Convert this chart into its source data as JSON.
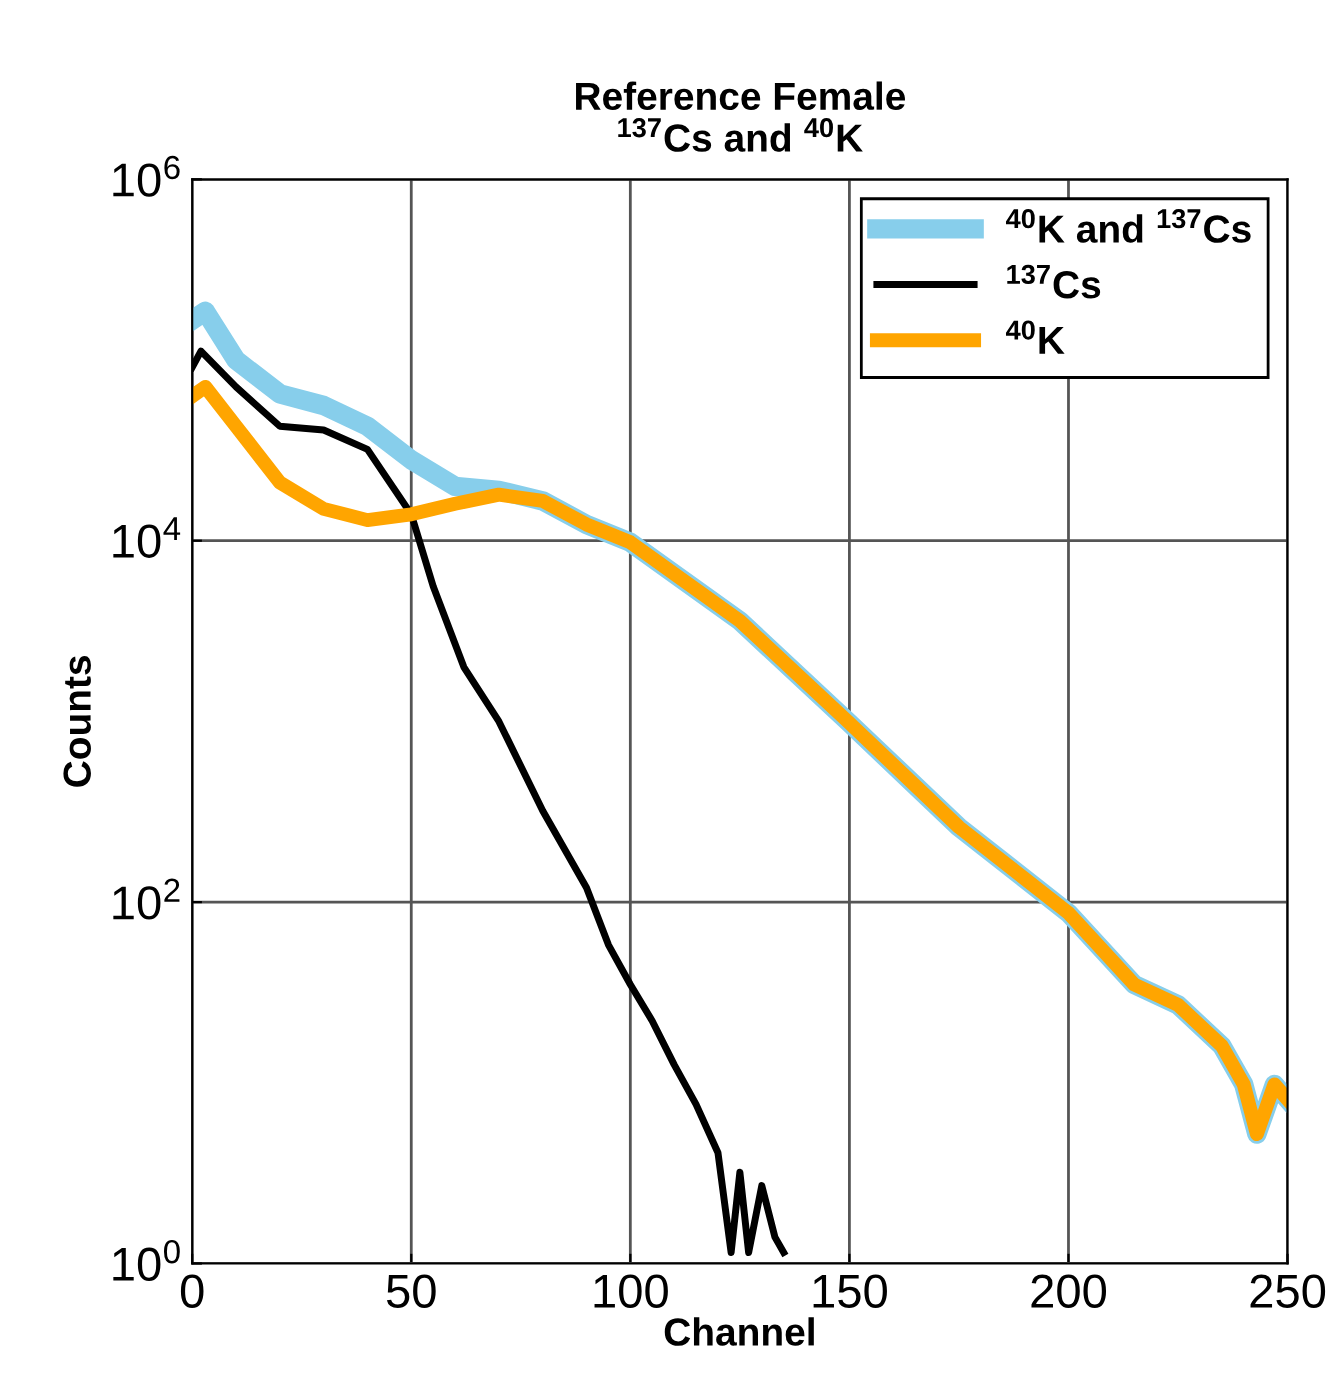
{
  "chart_data": {
    "type": "line",
    "title": "Reference Female\n$^{137}$Cs and $^{40}$K",
    "xlabel": "Channel",
    "ylabel": "Counts",
    "log": "y",
    "grid": true,
    "legend": "top right",
    "xlim": [
      0,
      250
    ],
    "xticks": [
      0,
      50,
      100,
      150,
      200,
      250
    ],
    "ylim": [
      1,
      1000000
    ],
    "yticks": [
      {
        "value": 1,
        "label": "10$^{0}$"
      },
      {
        "value": 100,
        "label": "10$^{2}$"
      },
      {
        "value": 10000,
        "label": "10$^{4}$"
      },
      {
        "value": 1000000,
        "label": "10$^{6}$"
      }
    ],
    "series": [
      {
        "name": "$^{40}$K and $^{137}$Cs",
        "color": "#87ceeb",
        "x": [
          0,
          3,
          10,
          20,
          30,
          40,
          50,
          60,
          70,
          80,
          90,
          100,
          125,
          150,
          175,
          200,
          215,
          225,
          235,
          240,
          243,
          247,
          250
        ],
        "values": [
          166000,
          186000,
          100000,
          65000,
          56000,
          43000,
          28000,
          20000,
          19000,
          16600,
          12300,
          9800,
          3600,
          980,
          260,
          87,
          35,
          27,
          16,
          9.8,
          5.2,
          9.8,
          8.1
        ]
      },
      {
        "name": "$^{137}$Cs",
        "color": "#000000",
        "x": [
          0,
          2,
          10,
          20,
          30,
          40,
          50,
          55,
          62,
          70,
          80,
          90,
          95,
          100,
          105,
          110,
          115,
          120,
          123,
          125,
          127,
          130,
          133,
          135
        ],
        "values": [
          91000,
          112000,
          71000,
          43000,
          41000,
          32000,
          14000,
          5600,
          2000,
          1000,
          320,
          120,
          58,
          35,
          22,
          12.6,
          7.6,
          4.1,
          1.15,
          3.2,
          1.15,
          2.7,
          1.4,
          1.15
        ]
      },
      {
        "name": "$^{40}$K",
        "color": "#ffa500",
        "x": [
          0,
          3,
          10,
          20,
          30,
          40,
          50,
          60,
          70,
          80,
          90,
          100,
          125,
          150,
          175,
          200,
          215,
          225,
          235,
          240,
          243,
          247,
          250
        ],
        "values": [
          63000,
          71000,
          43000,
          21000,
          15000,
          13000,
          14000,
          16000,
          18000,
          16600,
          12300,
          9800,
          3600,
          980,
          260,
          87,
          35,
          27,
          16,
          9.8,
          5.2,
          9.8,
          8.1
        ]
      }
    ]
  }
}
